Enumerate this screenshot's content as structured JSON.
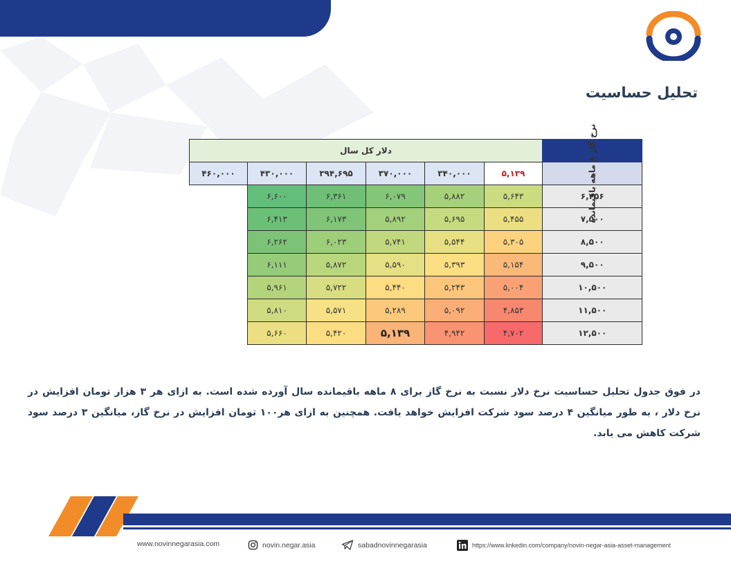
{
  "page": {
    "title": "تحلیل حساسیت"
  },
  "table": {
    "caption": "دلار کل سال",
    "corner_value": "۵,۱۳۹",
    "column_headers": [
      "۳۴۰,۰۰۰",
      "۳۷۰,۰۰۰",
      "۳۹۴,۶۹۵",
      "۴۳۰,۰۰۰",
      "۴۶۰,۰۰۰"
    ],
    "row_axis_label": "نرخ گاز ۸ ماهه باقیمانده",
    "rows": [
      {
        "label": "۶,۲۵۶",
        "cells": [
          "۵,۶۴۳",
          "۵,۸۸۲",
          "۶,۰۷۹",
          "۶,۳۶۱",
          "۶,۶۰۰"
        ]
      },
      {
        "label": "۷,۵۰۰",
        "cells": [
          "۵,۴۵۵",
          "۵,۶۹۵",
          "۵,۸۹۲",
          "۶,۱۷۳",
          "۶,۴۱۳"
        ]
      },
      {
        "label": "۸,۵۰۰",
        "cells": [
          "۵,۳۰۵",
          "۵,۵۴۴",
          "۵,۷۴۱",
          "۶,۰۲۳",
          "۶,۲۶۲"
        ]
      },
      {
        "label": "۹,۵۰۰",
        "cells": [
          "۵,۱۵۴",
          "۵,۳۹۳",
          "۵,۵۹۰",
          "۵,۸۷۲",
          "۶,۱۱۱"
        ]
      },
      {
        "label": "۱۰,۵۰۰",
        "cells": [
          "۵,۰۰۴",
          "۵,۲۴۳",
          "۵,۴۴۰",
          "۵,۷۲۲",
          "۵,۹۶۱"
        ]
      },
      {
        "label": "۱۱,۵۰۰",
        "cells": [
          "۴,۸۵۳",
          "۵,۰۹۲",
          "۵,۲۸۹",
          "۵,۵۷۱",
          "۵,۸۱۰"
        ]
      },
      {
        "label": "۱۲,۵۰۰",
        "cells": [
          "۴,۷۰۲",
          "۴,۹۴۲",
          "۵,۱۳۹",
          "۵,۴۲۰",
          "۵,۶۶۰"
        ]
      }
    ],
    "cell_colors": [
      [
        "#cbdc80",
        "#a6d079",
        "#84c677",
        "#6fbf76",
        "#63be7b"
      ],
      [
        "#ecdf82",
        "#c6da7f",
        "#a3d07a",
        "#7fc477",
        "#6cbf77"
      ],
      [
        "#fcd27e",
        "#e6e083",
        "#c1d87f",
        "#9dce79",
        "#7cc377"
      ],
      [
        "#fbb979",
        "#fcdf83",
        "#e5e083",
        "#b9d67d",
        "#95cb79"
      ],
      [
        "#f9a174",
        "#fbc67b",
        "#fedc82",
        "#d9dd81",
        "#b4d47c"
      ],
      [
        "#f8876f",
        "#faad76",
        "#fbc87c",
        "#f6e284",
        "#d0db81"
      ],
      [
        "#f8696b",
        "#f99371",
        "#fab478",
        "#fcdd82",
        "#ecdf83"
      ]
    ],
    "highlight": {
      "row": 6,
      "col": 2
    }
  },
  "body_text": "در فوق جدول تحلیل حساسیت نرخ دلار نسبت به نرخ گاز برای ۸ ماهه باقیمانده سال آورده شده است. به ازای هر ۳ هزار تومان افزایش در نرخ دلار ، به طور میانگین ۴ درصد سود شرکت افزایش خواهد یافت. همچنین به ازای هر۱۰۰ تومان افزایش در نرخ گاز، میانگین ۳ درصد سود شرکت کاهش می یابد.",
  "footer": {
    "website": "www.novinnegarasia.com",
    "instagram": "novin.negar.asia",
    "telegram": "sabadnovinnegarasia",
    "linkedin": "https://www.linkedin.com/company/novin-negar-asia-asset-management"
  },
  "colors": {
    "brand_blue": "#1f3a8a",
    "brand_orange": "#f28c28",
    "title_text": "#2b3c54",
    "highlight_red": "#c0202a"
  }
}
